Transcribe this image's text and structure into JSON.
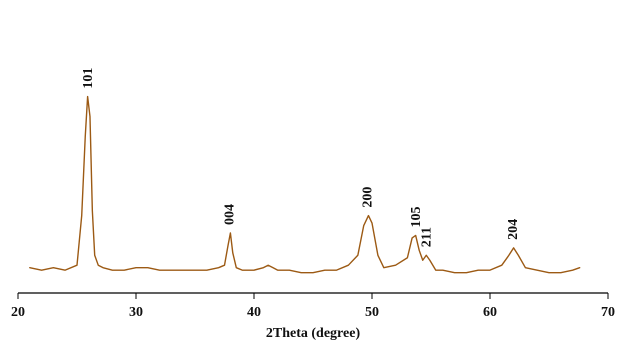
{
  "chart_data": {
    "type": "line",
    "xlabel": "2Theta (degree)",
    "ylabel": "",
    "xlim": [
      20,
      70
    ],
    "ylim": [
      0,
      100
    ],
    "xticks": [
      20,
      30,
      40,
      50,
      60,
      70
    ],
    "grid": false,
    "series": [
      {
        "color": "#9c5a14",
        "x": [
          21.0,
          22.0,
          23.0,
          24.0,
          25.0,
          25.4,
          25.7,
          25.9,
          26.1,
          26.3,
          26.5,
          26.8,
          27.2,
          28.0,
          29.0,
          30.0,
          31.0,
          32.0,
          33.0,
          34.0,
          35.0,
          36.0,
          37.0,
          37.5,
          37.8,
          38.0,
          38.2,
          38.5,
          39.0,
          40.0,
          40.8,
          41.2,
          41.6,
          42.0,
          43.0,
          44.0,
          45.0,
          46.0,
          47.0,
          48.0,
          48.8,
          49.3,
          49.7,
          50.0,
          50.5,
          51.0,
          52.0,
          53.0,
          53.4,
          53.7,
          54.0,
          54.3,
          54.6,
          54.9,
          55.4,
          56.0,
          57.0,
          58.0,
          59.0,
          60.0,
          61.0,
          61.6,
          62.0,
          62.4,
          63.0,
          64.0,
          65.0,
          66.0,
          67.0,
          67.6
        ],
        "y": [
          9,
          8,
          9,
          8,
          10,
          30,
          62,
          78,
          70,
          32,
          14,
          10,
          9,
          8,
          8,
          9,
          9,
          8,
          8,
          8,
          8,
          8,
          9,
          10,
          18,
          23,
          15,
          9,
          8,
          8,
          9,
          10,
          9,
          8,
          8,
          7,
          7,
          8,
          8,
          10,
          14,
          26,
          30,
          27,
          14,
          9,
          10,
          13,
          21,
          22,
          16,
          12,
          14,
          12,
          8,
          8,
          7,
          7,
          8,
          8,
          10,
          14,
          17,
          14,
          9,
          8,
          7,
          7,
          8,
          9
        ]
      }
    ],
    "annotations": [
      {
        "label": "101",
        "x": 26.0,
        "y": 78
      },
      {
        "label": "004",
        "x": 38.0,
        "y": 23
      },
      {
        "label": "200",
        "x": 49.7,
        "y": 30
      },
      {
        "label": "105",
        "x": 53.8,
        "y": 22
      },
      {
        "label": "211",
        "x": 54.7,
        "y": 14
      },
      {
        "label": "204",
        "x": 62.0,
        "y": 17
      }
    ]
  }
}
